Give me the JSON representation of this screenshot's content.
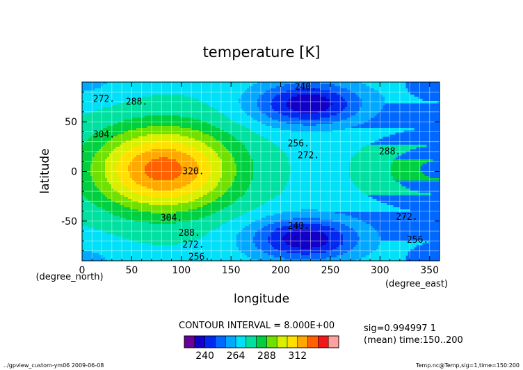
{
  "chart_data": {
    "type": "contour",
    "title": "temperature [K]",
    "xlabel": "longitude",
    "ylabel": "latitude",
    "x_units": "(degree_east)",
    "y_units": "(degree_north)",
    "xlim": [
      0,
      360
    ],
    "ylim": [
      -90,
      90
    ],
    "x_ticks": [
      0,
      50,
      100,
      150,
      200,
      250,
      300,
      350
    ],
    "y_ticks": [
      50,
      0,
      -50
    ],
    "grid": true,
    "contour_interval_text": "CONTOUR INTERVAL = 8.000E+00",
    "contour_interval": 8,
    "levels": [
      232,
      240,
      248,
      256,
      264,
      272,
      280,
      288,
      296,
      304,
      312,
      320
    ],
    "contour_labels": [
      {
        "text": "240.",
        "lon": 225,
        "lat": 85
      },
      {
        "text": "256.",
        "lon": 218,
        "lat": 28
      },
      {
        "text": "272.",
        "lon": 228,
        "lat": 16
      },
      {
        "text": "288.",
        "lon": 310,
        "lat": 20
      },
      {
        "text": "272.",
        "lon": 22,
        "lat": 73
      },
      {
        "text": "288.",
        "lon": 55,
        "lat": 70
      },
      {
        "text": "304.",
        "lon": 22,
        "lat": 37
      },
      {
        "text": "320.",
        "lon": 112,
        "lat": 0
      },
      {
        "text": "304.",
        "lon": 90,
        "lat": -47
      },
      {
        "text": "288.",
        "lon": 108,
        "lat": -62
      },
      {
        "text": "272.",
        "lon": 112,
        "lat": -74
      },
      {
        "text": "256.",
        "lon": 118,
        "lat": -86
      },
      {
        "text": "240.",
        "lon": 218,
        "lat": -55
      },
      {
        "text": "272.",
        "lon": 327,
        "lat": -46
      },
      {
        "text": "256.",
        "lon": 338,
        "lat": -69
      }
    ],
    "colorbar": {
      "colors": [
        "#6a009a",
        "#1000c8",
        "#0028f0",
        "#0068ff",
        "#00a8ff",
        "#00e0f8",
        "#00e0a0",
        "#00d040",
        "#70e000",
        "#d8f000",
        "#ffe000",
        "#ffa800",
        "#ff6000",
        "#f01818",
        "#ffa0a0"
      ],
      "tick_labels": [
        "240",
        "264",
        "288",
        "312"
      ]
    },
    "footer_info": [
      "sig=0.994997 1",
      "(mean) time:150..200"
    ]
  },
  "footer": {
    "left": "../gpview_custom-ym06  2009-06-08",
    "right": "Temp.nc@Temp,sig=1,time=150:200"
  },
  "colors": {
    "background": "#ffffff",
    "contour_line": "#000000"
  }
}
